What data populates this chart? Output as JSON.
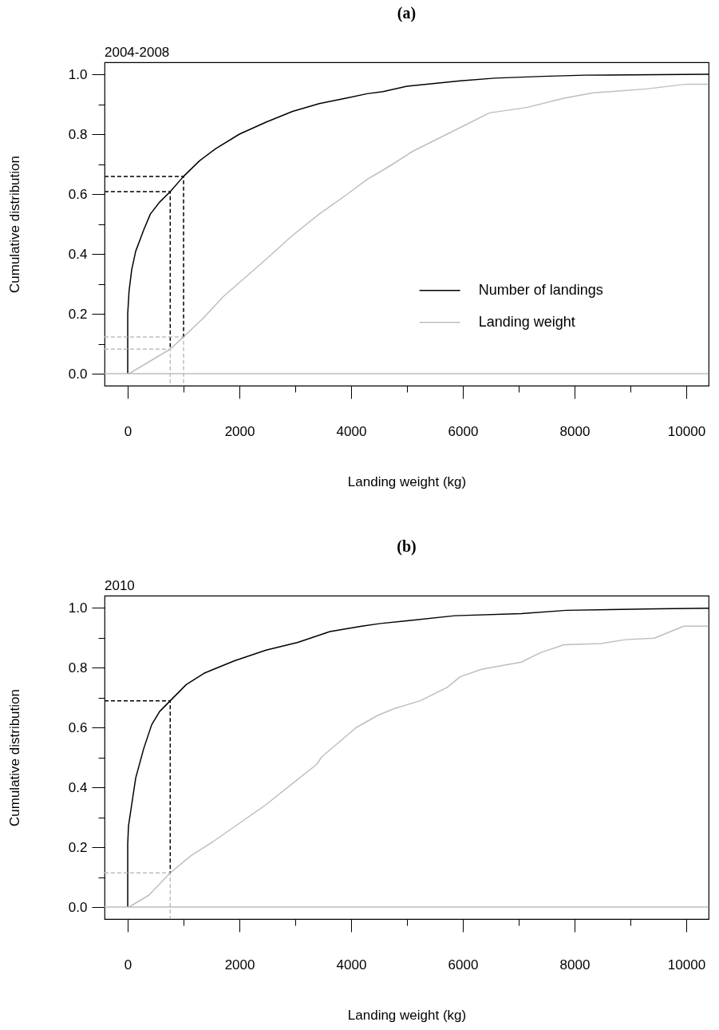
{
  "chart_data": [
    {
      "type": "line",
      "title": "(a)",
      "subtitle": "2004-2008",
      "xlabel": "Landing weight (kg)",
      "ylabel": "Cumulative distribution",
      "xlim": [
        -415,
        10400
      ],
      "ylim": [
        -0.04,
        1.04
      ],
      "xticks": [
        0,
        {
          "value": 1000,
          "label": null
        },
        2000,
        {
          "value": 3000,
          "label": null
        },
        4000,
        {
          "value": 5000,
          "label": null
        },
        6000,
        {
          "value": 7000,
          "label": null
        },
        8000,
        {
          "value": 9000,
          "label": null
        },
        10000
      ],
      "yticks": [
        {
          "value": 0,
          "label": "0.0"
        },
        {
          "value": 0.1,
          "label": null
        },
        {
          "value": 0.2,
          "label": "0.2"
        },
        {
          "value": 0.3,
          "label": null
        },
        {
          "value": 0.4,
          "label": "0.4"
        },
        {
          "value": 0.5,
          "label": null
        },
        {
          "value": 0.6,
          "label": "0.6"
        },
        {
          "value": 0.7,
          "label": null
        },
        {
          "value": 0.8,
          "label": "0.8"
        },
        {
          "value": 0.9,
          "label": null
        },
        {
          "value": 1,
          "label": "1.0"
        }
      ],
      "legend": "right",
      "ref_lines": [
        {
          "axis": "y",
          "value": 0,
          "color": "#bebebe"
        }
      ],
      "series": [
        {
          "name": "Number of landings",
          "color": "#000000",
          "x": [
            0,
            0,
            24,
            71,
            143,
            286,
            405,
            571,
            761,
            1000,
            1286,
            1571,
            2000,
            2476,
            2952,
            3429,
            3905,
            4286,
            4571,
            5000,
            5952,
            6571,
            7429,
            8190,
            10400
          ],
          "values": [
            0,
            0.2,
            0.276,
            0.347,
            0.409,
            0.48,
            0.533,
            0.573,
            0.608,
            0.659,
            0.711,
            0.751,
            0.8,
            0.84,
            0.876,
            0.902,
            0.92,
            0.935,
            0.942,
            0.96,
            0.978,
            0.987,
            0.993,
            0.997,
            1.0
          ]
        },
        {
          "name": "Landing weight",
          "color": "#bebebe",
          "x": [
            0,
            24,
            761,
            1000,
            1333,
            1714,
            2095,
            2476,
            2952,
            3429,
            3905,
            4286,
            4571,
            4762,
            5095,
            5952,
            6476,
            7143,
            7810,
            8333,
            9286,
            10000,
            10400
          ],
          "values": [
            0,
            0,
            0.082,
            0.123,
            0.182,
            0.258,
            0.32,
            0.382,
            0.462,
            0.533,
            0.596,
            0.649,
            0.68,
            0.702,
            0.742,
            0.822,
            0.871,
            0.889,
            0.92,
            0.938,
            0.951,
            0.967,
            0.967
          ]
        },
        {
          "color": "#000000",
          "line_style": "dashed",
          "x": [
            -415,
            1000,
            1000
          ],
          "values": [
            0.659,
            0.659,
            0.123
          ]
        },
        {
          "color": "#000000",
          "line_style": "dashed",
          "x": [
            -415,
            761,
            761
          ],
          "values": [
            0.608,
            0.608,
            0.082
          ]
        },
        {
          "color": "#bebebe",
          "line_style": "dashed",
          "x": [
            -415,
            1000,
            1000
          ],
          "values": [
            0.123,
            0.123,
            -0.04
          ]
        },
        {
          "color": "#bebebe",
          "line_style": "dashed",
          "x": [
            -415,
            761,
            761
          ],
          "values": [
            0.082,
            0.082,
            -0.04
          ]
        }
      ]
    },
    {
      "type": "line",
      "title": "(b)",
      "subtitle": "2010",
      "xlabel": "Landing weight (kg)",
      "ylabel": "Cumulative distribution",
      "xlim": [
        -415,
        10400
      ],
      "ylim": [
        -0.04,
        1.04
      ],
      "xticks": [
        0,
        {
          "value": 1000,
          "label": null
        },
        2000,
        {
          "value": 3000,
          "label": null
        },
        4000,
        {
          "value": 5000,
          "label": null
        },
        6000,
        {
          "value": 7000,
          "label": null
        },
        8000,
        {
          "value": 9000,
          "label": null
        },
        10000
      ],
      "yticks": [
        {
          "value": 0,
          "label": "0.0"
        },
        {
          "value": 0.1,
          "label": null
        },
        {
          "value": 0.2,
          "label": "0.2"
        },
        {
          "value": 0.3,
          "label": null
        },
        {
          "value": 0.4,
          "label": "0.4"
        },
        {
          "value": 0.5,
          "label": null
        },
        {
          "value": 0.6,
          "label": "0.6"
        },
        {
          "value": 0.7,
          "label": null
        },
        {
          "value": 0.8,
          "label": "0.8"
        },
        {
          "value": 0.9,
          "label": null
        },
        {
          "value": 1,
          "label": "1.0"
        }
      ],
      "legend": "right",
      "ref_lines": [
        {
          "axis": "y",
          "value": 0,
          "color": "#bebebe"
        }
      ],
      "series": [
        {
          "name": "Number of landings",
          "color": "#000000",
          "x": [
            0,
            0,
            14,
            71,
            143,
            286,
            429,
            571,
            761,
            1048,
            1381,
            1905,
            2476,
            3048,
            3619,
            4190,
            4524,
            5000,
            5857,
            7048,
            7857,
            9476,
            10400
          ],
          "values": [
            0,
            0.21,
            0.271,
            0.342,
            0.431,
            0.529,
            0.609,
            0.653,
            0.689,
            0.743,
            0.782,
            0.822,
            0.858,
            0.884,
            0.92,
            0.938,
            0.947,
            0.956,
            0.973,
            0.98,
            0.991,
            0.996,
            0.998
          ]
        },
        {
          "name": "Landing weight",
          "color": "#bebebe",
          "x": [
            0,
            24,
            381,
            761,
            1143,
            1524,
            2000,
            2476,
            2952,
            3381,
            3476,
            4095,
            4476,
            4762,
            5238,
            5714,
            5952,
            6333,
            7048,
            7381,
            7810,
            8476,
            8905,
            9429,
            9952,
            10400
          ],
          "values": [
            0,
            0,
            0.04,
            0.114,
            0.173,
            0.218,
            0.28,
            0.342,
            0.413,
            0.476,
            0.502,
            0.6,
            0.64,
            0.662,
            0.689,
            0.733,
            0.769,
            0.794,
            0.818,
            0.849,
            0.876,
            0.88,
            0.893,
            0.898,
            0.938,
            0.938
          ]
        },
        {
          "color": "#000000",
          "line_style": "dashed",
          "x": [
            -415,
            761,
            761
          ],
          "values": [
            0.689,
            0.689,
            0.114
          ]
        },
        {
          "color": "#bebebe",
          "line_style": "dashed",
          "x": [
            -415,
            761,
            761
          ],
          "values": [
            0.114,
            0.114,
            -0.04
          ]
        }
      ]
    }
  ]
}
